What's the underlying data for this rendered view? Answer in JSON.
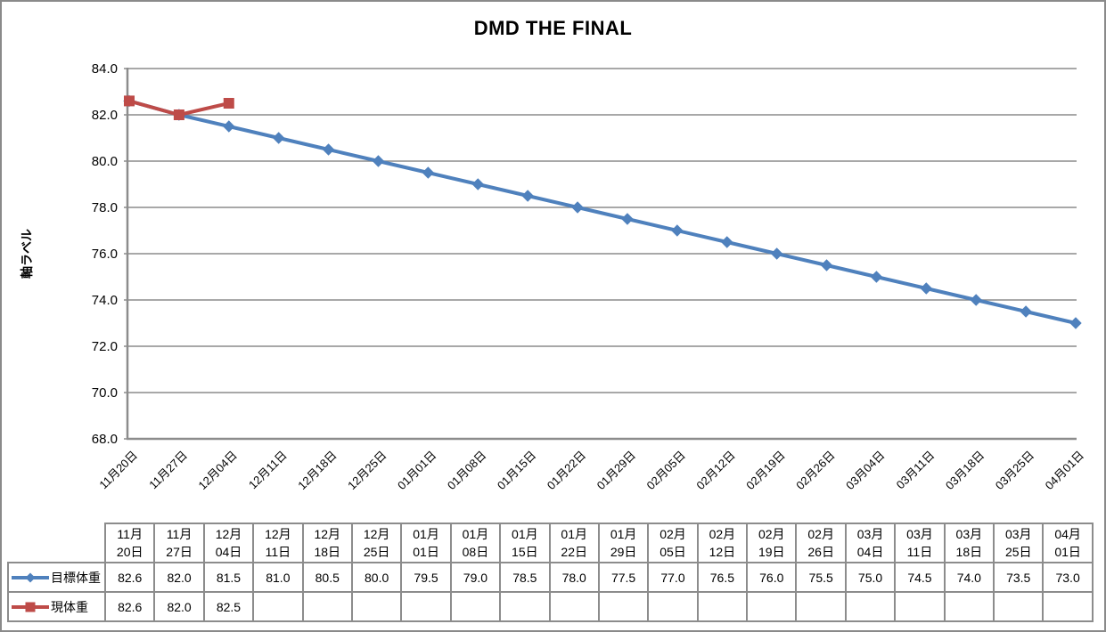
{
  "chart": {
    "border_color": "#8a8a8a",
    "background": "#ffffff"
  },
  "chart_data": {
    "type": "line",
    "title": "DMD THE FINAL",
    "xlabel": "",
    "ylabel": "軸ラベル",
    "ylim": [
      68.0,
      84.0
    ],
    "y_tick_step": 2,
    "y_tick_labels": [
      "68.0",
      "70.0",
      "72.0",
      "74.0",
      "76.0",
      "78.0",
      "80.0",
      "82.0",
      "84.0"
    ],
    "grid": true,
    "x_label_rotation_deg": 45,
    "legend_position": "data-table-left-column",
    "colors": {
      "grid": "#8c8c8c",
      "axis": "#8c8c8c",
      "text": "#000000"
    },
    "categories": [
      "11月20日",
      "11月27日",
      "12月04日",
      "12月11日",
      "12月18日",
      "12月25日",
      "01月01日",
      "01月08日",
      "01月15日",
      "01月22日",
      "01月29日",
      "02月05日",
      "02月12日",
      "02月19日",
      "02月26日",
      "03月04日",
      "03月11日",
      "03月18日",
      "03月25日",
      "04月01日"
    ],
    "series": [
      {
        "name": "目標体重",
        "slug": "target-weight",
        "color": "#4F81BD",
        "marker": "diamond",
        "values": [
          82.6,
          82.0,
          81.5,
          81.0,
          80.5,
          80.0,
          79.5,
          79.0,
          78.5,
          78.0,
          77.5,
          77.0,
          76.5,
          76.0,
          75.5,
          75.0,
          74.5,
          74.0,
          73.5,
          73.0
        ]
      },
      {
        "name": "現体重",
        "slug": "current-weight",
        "color": "#BE4B48",
        "marker": "square",
        "values": [
          82.6,
          82.0,
          82.5,
          null,
          null,
          null,
          null,
          null,
          null,
          null,
          null,
          null,
          null,
          null,
          null,
          null,
          null,
          null,
          null,
          null
        ]
      }
    ]
  }
}
